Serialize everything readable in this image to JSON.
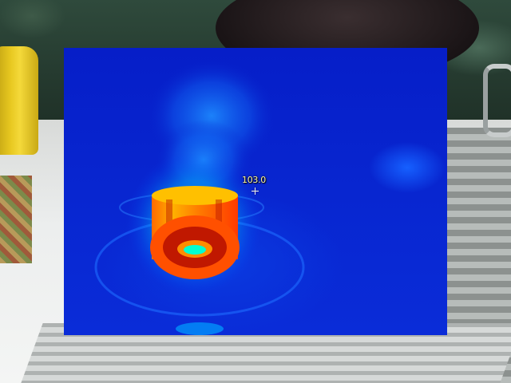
{
  "thermal_view": {
    "spot_temperature": "103.0"
  },
  "palette": {
    "cold": "#061ec8",
    "cool": "#1e8cff",
    "mid": "#00e0ff",
    "warm": "#ffd000",
    "hot": "#ff4000"
  }
}
